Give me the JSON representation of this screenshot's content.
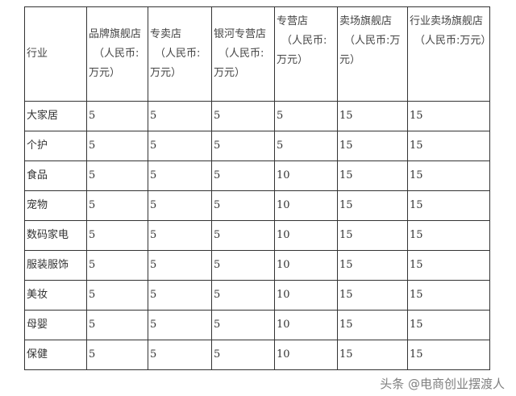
{
  "table": {
    "headers": [
      {
        "name": "行业",
        "unit": ""
      },
      {
        "name": "品牌旗舰店",
        "unit": "（人民币:万元）"
      },
      {
        "name": "专卖店",
        "unit": "（人民币:万元）"
      },
      {
        "name": "银河专营店",
        "unit": "（人民币:万元）"
      },
      {
        "name": "专营店",
        "unit": "（人民币:万元）"
      },
      {
        "name": "卖场旗舰店",
        "unit": "（人民币:万元）"
      },
      {
        "name": "行业卖场旗舰店",
        "unit": "（人民币:万元）"
      }
    ],
    "rows": [
      [
        "大家居",
        "5",
        "5",
        "5",
        "5",
        "15",
        "15"
      ],
      [
        "个护",
        "5",
        "5",
        "5",
        "5",
        "15",
        "15"
      ],
      [
        "食品",
        "5",
        "5",
        "5",
        "10",
        "15",
        "15"
      ],
      [
        "宠物",
        "5",
        "5",
        "5",
        "10",
        "15",
        "15"
      ],
      [
        "数码家电",
        "5",
        "5",
        "5",
        "10",
        "15",
        "15"
      ],
      [
        "服装服饰",
        "5",
        "5",
        "5",
        "10",
        "15",
        "15"
      ],
      [
        "美妆",
        "5",
        "5",
        "5",
        "10",
        "15",
        "15"
      ],
      [
        "母婴",
        "5",
        "5",
        "5",
        "10",
        "15",
        "15"
      ],
      [
        "保健",
        "5",
        "5",
        "5",
        "10",
        "15",
        "15"
      ]
    ]
  },
  "watermark": "头条 @电商创业摆渡人"
}
